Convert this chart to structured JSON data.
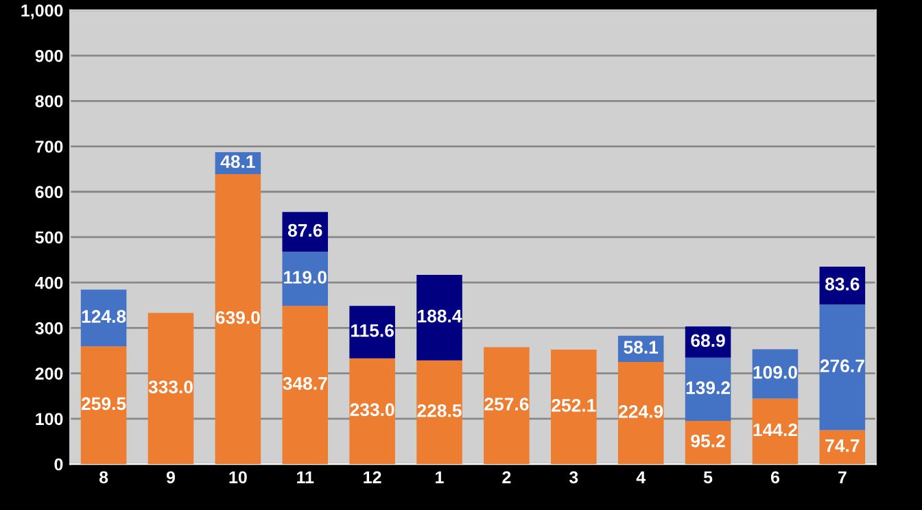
{
  "chart_data": {
    "type": "bar",
    "stacked": true,
    "categories": [
      "8",
      "9",
      "10",
      "11",
      "12",
      "1",
      "2",
      "3",
      "4",
      "5",
      "6",
      "7"
    ],
    "series": [
      {
        "color": "#ed7d31",
        "values": [
          259.5,
          333.0,
          639.0,
          348.7,
          233.0,
          228.5,
          257.6,
          252.1,
          224.9,
          95.2,
          144.2,
          74.7
        ],
        "value_labels": [
          "259.5",
          "333.0",
          "639.0",
          "348.7",
          "233.0",
          "228.5",
          "257.6",
          "252.1",
          "224.9",
          "95.2",
          "144.2",
          "74.7"
        ]
      },
      {
        "color": "#4472c4",
        "values": [
          124.8,
          null,
          48.1,
          119.0,
          null,
          null,
          null,
          null,
          58.1,
          139.2,
          109.0,
          276.7
        ],
        "value_labels": [
          "124.8",
          null,
          "48.1",
          "119.0",
          null,
          null,
          null,
          null,
          "58.1",
          "139.2",
          "109.0",
          "276.7"
        ]
      },
      {
        "color": "#000080",
        "values": [
          null,
          null,
          null,
          87.6,
          115.6,
          188.4,
          null,
          null,
          null,
          68.9,
          null,
          83.6
        ],
        "value_labels": [
          null,
          null,
          null,
          "87.6",
          "115.6",
          "188.4",
          null,
          null,
          null,
          "68.9",
          null,
          "83.6"
        ]
      }
    ],
    "ylim": [
      0,
      1000
    ],
    "yticks": [
      0,
      100,
      200,
      300,
      400,
      500,
      600,
      700,
      800,
      900,
      {
        "value": 1000,
        "label": "1,000"
      }
    ],
    "grid": "y"
  }
}
